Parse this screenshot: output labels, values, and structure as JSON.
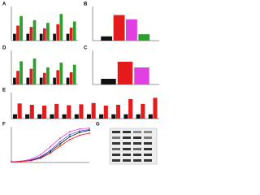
{
  "chart_data": [
    {
      "type": "bar",
      "label": "A",
      "categories": [
        null,
        null,
        null,
        null,
        null
      ],
      "ylim": [
        0,
        5
      ],
      "series": [
        {
          "color": "#111111",
          "values": [
            1,
            1,
            1,
            1,
            1
          ]
        },
        {
          "color": "#e41a1c",
          "values": [
            2.2,
            2.0,
            1.8,
            2.4,
            1.9
          ]
        },
        {
          "color": "#2ca02c",
          "values": [
            3.6,
            3.0,
            2.6,
            3.9,
            2.8
          ]
        }
      ]
    },
    {
      "type": "bar",
      "label": "B",
      "categories": [
        null
      ],
      "ylim": [
        0,
        8
      ],
      "series": [
        {
          "color": "#111111",
          "values": [
            1
          ]
        },
        {
          "color": "#e41a1c",
          "values": [
            6
          ]
        },
        {
          "color": "#e040e0",
          "values": [
            5
          ]
        },
        {
          "color": "#2ca02c",
          "values": [
            1.5
          ]
        }
      ]
    },
    {
      "type": "bar",
      "label": "D",
      "categories": [
        null,
        null,
        null,
        null,
        null
      ],
      "ylim": [
        0,
        5
      ],
      "series": [
        {
          "color": "#111111",
          "values": [
            1,
            1,
            1,
            1,
            1
          ]
        },
        {
          "color": "#e41a1c",
          "values": [
            2.0,
            2.3,
            1.7,
            2.1,
            1.8
          ]
        },
        {
          "color": "#2ca02c",
          "values": [
            3.4,
            3.8,
            2.5,
            3.2,
            2.9
          ]
        }
      ]
    },
    {
      "type": "bar",
      "label": "C",
      "categories": [
        null
      ],
      "ylim": [
        0,
        6
      ],
      "series": [
        {
          "color": "#111111",
          "values": [
            1
          ]
        },
        {
          "color": "#e41a1c",
          "values": [
            4
          ]
        },
        {
          "color": "#e040e0",
          "values": [
            3
          ]
        }
      ]
    },
    {
      "type": "bar",
      "label": "E",
      "categories": [
        null,
        null,
        null,
        null,
        null,
        null,
        null,
        null,
        null,
        null,
        null,
        null
      ],
      "ylim": [
        0,
        6
      ],
      "series": [
        {
          "color": "#111111",
          "values": [
            1,
            1,
            1,
            1,
            1,
            1,
            1,
            1,
            1,
            1,
            1,
            1
          ]
        },
        {
          "color": "#e41a1c",
          "values": [
            3.5,
            3.2,
            3.0,
            3.4,
            3.1,
            3.3,
            3.6,
            3.0,
            3.2,
            4.5,
            3.4,
            4.8
          ]
        }
      ]
    },
    {
      "type": "line",
      "label": "F",
      "x": [
        0,
        1,
        2,
        3,
        4,
        5,
        6,
        7,
        8
      ],
      "xlim": [
        0,
        8
      ],
      "ylim": [
        0,
        100
      ],
      "series": [
        {
          "color": "#111111",
          "values": [
            2,
            3,
            6,
            14,
            30,
            52,
            72,
            84,
            90
          ]
        },
        {
          "color": "#3355dd",
          "values": [
            2,
            3,
            7,
            16,
            34,
            58,
            78,
            88,
            92
          ]
        },
        {
          "color": "#e040e0",
          "values": [
            2,
            4,
            9,
            22,
            44,
            68,
            86,
            94,
            96
          ]
        },
        {
          "color": "#e41a1c",
          "values": [
            2,
            3,
            5,
            12,
            26,
            46,
            64,
            76,
            82
          ]
        }
      ]
    }
  ],
  "blot": {
    "label": "G"
  }
}
